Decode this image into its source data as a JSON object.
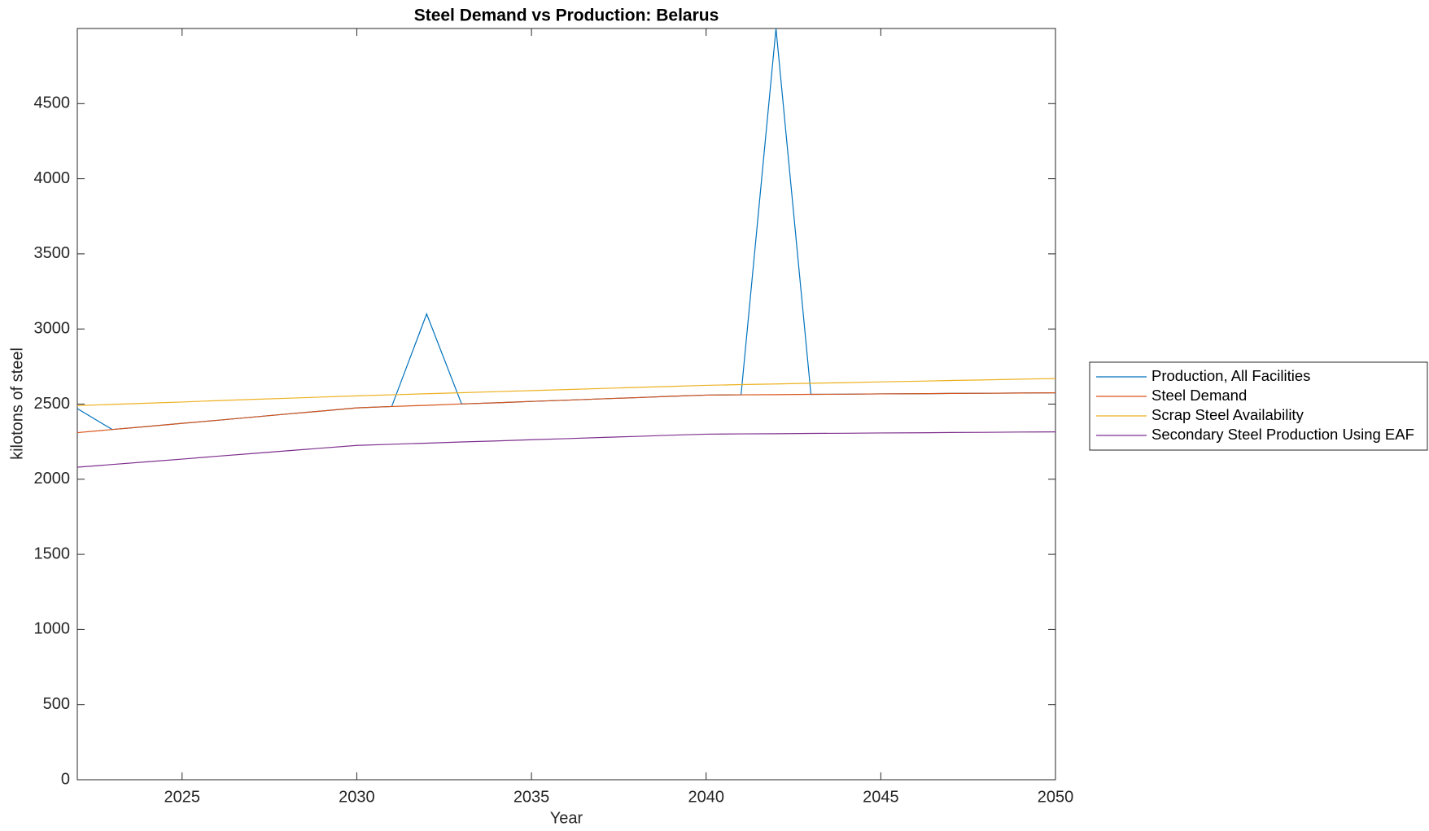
{
  "chart_data": {
    "type": "line",
    "title": "Steel Demand vs Production: Belarus",
    "xlabel": "Year",
    "ylabel": "kilotons of steel",
    "x": [
      2022,
      2023,
      2024,
      2025,
      2026,
      2027,
      2028,
      2029,
      2030,
      2031,
      2032,
      2033,
      2034,
      2035,
      2036,
      2037,
      2038,
      2039,
      2040,
      2041,
      2042,
      2043,
      2044,
      2045,
      2046,
      2047,
      2048,
      2049,
      2050
    ],
    "xlim": [
      2022,
      2050
    ],
    "xticks": [
      2025,
      2030,
      2035,
      2040,
      2045,
      2050
    ],
    "ylim": [
      0,
      5000
    ],
    "yticks": [
      0,
      500,
      1000,
      1500,
      2000,
      2500,
      3000,
      3500,
      4000,
      4500
    ],
    "grid": false,
    "legend": "outside-right",
    "series": [
      {
        "name": "Production, All Facilities",
        "color": "#0072BD",
        "values": [
          2470,
          2331,
          2351,
          2372,
          2392,
          2413,
          2434,
          2454,
          2475,
          2484,
          3100,
          2501,
          2509,
          2518,
          2526,
          2535,
          2543,
          2552,
          2560,
          2562,
          5000,
          2565,
          2566,
          2568,
          2569,
          2571,
          2572,
          2574,
          2575
        ]
      },
      {
        "name": "Steel Demand",
        "color": "#D95319",
        "values": [
          2310,
          2331,
          2351,
          2372,
          2392,
          2413,
          2434,
          2454,
          2475,
          2484,
          2492,
          2501,
          2509,
          2518,
          2526,
          2535,
          2543,
          2552,
          2560,
          2562,
          2563,
          2565,
          2566,
          2568,
          2569,
          2571,
          2572,
          2574,
          2575
        ]
      },
      {
        "name": "Scrap Steel Availability",
        "color": "#EDB120",
        "values": [
          2490,
          2498,
          2506,
          2514,
          2523,
          2531,
          2539,
          2547,
          2555,
          2562,
          2569,
          2576,
          2583,
          2590,
          2597,
          2604,
          2611,
          2618,
          2625,
          2630,
          2634,
          2639,
          2643,
          2648,
          2652,
          2657,
          2661,
          2666,
          2670
        ]
      },
      {
        "name": "Secondary Steel Production Using EAF",
        "color": "#7E2F8E",
        "values": [
          2080,
          2098,
          2116,
          2134,
          2153,
          2171,
          2189,
          2207,
          2225,
          2233,
          2240,
          2248,
          2255,
          2263,
          2270,
          2278,
          2285,
          2293,
          2300,
          2302,
          2303,
          2305,
          2306,
          2308,
          2309,
          2311,
          2312,
          2314,
          2315
        ]
      }
    ]
  }
}
